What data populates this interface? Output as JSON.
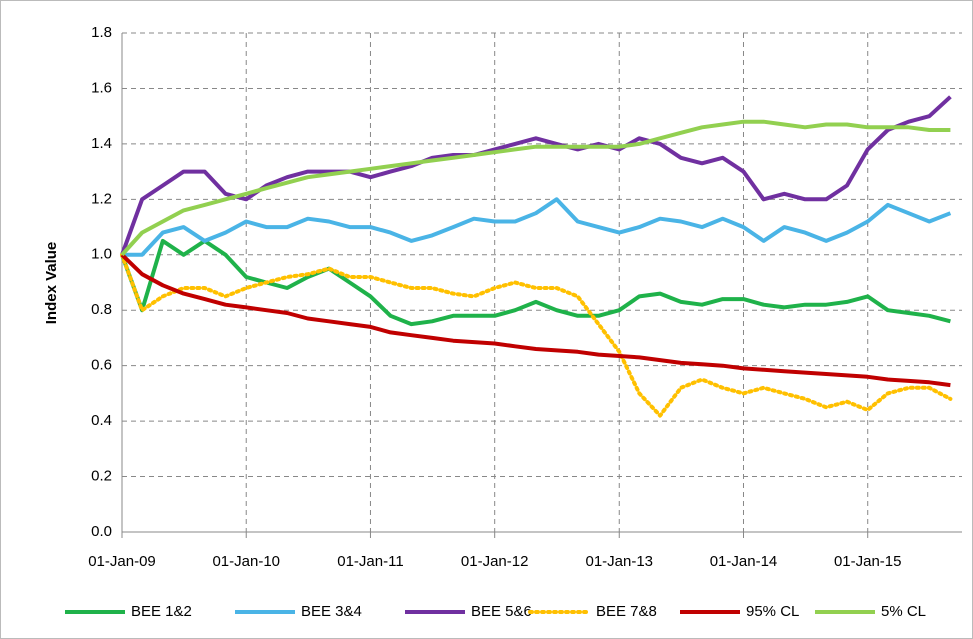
{
  "chart_data": {
    "type": "line",
    "y_label": "Index Value",
    "x": [
      "2009-01-01",
      "2009-03-01",
      "2009-05-01",
      "2009-07-01",
      "2009-09-01",
      "2009-11-01",
      "2010-01-01",
      "2010-03-01",
      "2010-05-01",
      "2010-07-01",
      "2010-09-01",
      "2010-11-01",
      "2011-01-01",
      "2011-03-01",
      "2011-05-01",
      "2011-07-01",
      "2011-09-01",
      "2011-11-01",
      "2012-01-01",
      "2012-03-01",
      "2012-05-01",
      "2012-07-01",
      "2012-09-01",
      "2012-11-01",
      "2013-01-01",
      "2013-03-01",
      "2013-05-01",
      "2013-07-01",
      "2013-09-01",
      "2013-11-01",
      "2014-01-01",
      "2014-03-01",
      "2014-05-01",
      "2014-07-01",
      "2014-09-01",
      "2014-11-01",
      "2015-01-01",
      "2015-03-01",
      "2015-05-01",
      "2015-07-01",
      "2015-09-01"
    ],
    "series": [
      {
        "name": "BEE 1&2",
        "color": "#1fb24a",
        "style": "solid",
        "values": [
          1.0,
          0.8,
          1.05,
          1.0,
          1.05,
          1.0,
          0.92,
          0.9,
          0.88,
          0.92,
          0.95,
          0.9,
          0.85,
          0.78,
          0.75,
          0.76,
          0.78,
          0.78,
          0.78,
          0.8,
          0.83,
          0.8,
          0.78,
          0.78,
          0.8,
          0.85,
          0.86,
          0.83,
          0.82,
          0.84,
          0.84,
          0.82,
          0.81,
          0.82,
          0.82,
          0.83,
          0.85,
          0.8,
          0.79,
          0.78,
          0.76
        ]
      },
      {
        "name": "BEE 3&4",
        "color": "#4ab4e6",
        "style": "solid",
        "values": [
          1.0,
          1.0,
          1.08,
          1.1,
          1.05,
          1.08,
          1.12,
          1.1,
          1.1,
          1.13,
          1.12,
          1.1,
          1.1,
          1.08,
          1.05,
          1.07,
          1.1,
          1.13,
          1.12,
          1.12,
          1.15,
          1.2,
          1.12,
          1.1,
          1.08,
          1.1,
          1.13,
          1.12,
          1.1,
          1.13,
          1.1,
          1.05,
          1.1,
          1.08,
          1.05,
          1.08,
          1.12,
          1.18,
          1.15,
          1.12,
          1.15
        ]
      },
      {
        "name": "BEE 5&6",
        "color": "#7030a0",
        "style": "solid",
        "values": [
          1.0,
          1.2,
          1.25,
          1.3,
          1.3,
          1.22,
          1.2,
          1.25,
          1.28,
          1.3,
          1.3,
          1.3,
          1.28,
          1.3,
          1.32,
          1.35,
          1.36,
          1.36,
          1.38,
          1.4,
          1.42,
          1.4,
          1.38,
          1.4,
          1.38,
          1.42,
          1.4,
          1.35,
          1.33,
          1.35,
          1.3,
          1.2,
          1.22,
          1.2,
          1.2,
          1.25,
          1.38,
          1.45,
          1.48,
          1.5,
          1.57
        ]
      },
      {
        "name": "BEE 7&8",
        "color": "#ffc000",
        "style": "dotted",
        "values": [
          1.0,
          0.8,
          0.85,
          0.88,
          0.88,
          0.85,
          0.88,
          0.9,
          0.92,
          0.93,
          0.95,
          0.92,
          0.92,
          0.9,
          0.88,
          0.88,
          0.86,
          0.85,
          0.88,
          0.9,
          0.88,
          0.88,
          0.85,
          0.75,
          0.65,
          0.5,
          0.42,
          0.52,
          0.55,
          0.52,
          0.5,
          0.52,
          0.5,
          0.48,
          0.45,
          0.47,
          0.44,
          0.5,
          0.52,
          0.52,
          0.48
        ]
      },
      {
        "name": "95% CL",
        "color": "#c00000",
        "style": "solid",
        "values": [
          1.0,
          0.93,
          0.89,
          0.86,
          0.84,
          0.82,
          0.81,
          0.8,
          0.79,
          0.77,
          0.76,
          0.75,
          0.74,
          0.72,
          0.71,
          0.7,
          0.69,
          0.685,
          0.68,
          0.67,
          0.66,
          0.655,
          0.65,
          0.64,
          0.635,
          0.63,
          0.62,
          0.61,
          0.605,
          0.6,
          0.59,
          0.585,
          0.58,
          0.575,
          0.57,
          0.565,
          0.56,
          0.55,
          0.545,
          0.54,
          0.53
        ]
      },
      {
        "name": "5% CL",
        "color": "#92d050",
        "style": "solid",
        "values": [
          1.0,
          1.08,
          1.12,
          1.16,
          1.18,
          1.2,
          1.22,
          1.24,
          1.26,
          1.28,
          1.29,
          1.3,
          1.31,
          1.32,
          1.33,
          1.34,
          1.35,
          1.36,
          1.37,
          1.38,
          1.39,
          1.39,
          1.39,
          1.39,
          1.39,
          1.4,
          1.42,
          1.44,
          1.46,
          1.47,
          1.48,
          1.48,
          1.47,
          1.46,
          1.47,
          1.47,
          1.46,
          1.46,
          1.46,
          1.45,
          1.45
        ]
      }
    ],
    "xlim": [
      "2009-01-01",
      "2015-10-05"
    ],
    "xticks": [
      {
        "value": "2009-01-01",
        "label": "01-Jan-09"
      },
      {
        "value": "2010-01-01",
        "label": "01-Jan-10"
      },
      {
        "value": "2011-01-01",
        "label": "01-Jan-11"
      },
      {
        "value": "2012-01-01",
        "label": "01-Jan-12"
      },
      {
        "value": "2013-01-01",
        "label": "01-Jan-13"
      },
      {
        "value": "2014-01-01",
        "label": "01-Jan-14"
      },
      {
        "value": "2015-01-01",
        "label": "01-Jan-15"
      }
    ],
    "ylim": [
      0,
      1.8
    ],
    "yticks": [
      {
        "value": 0,
        "label": "0.0"
      },
      {
        "value": 0.2,
        "label": "0.2"
      },
      {
        "value": 0.4,
        "label": "0.4"
      },
      {
        "value": 0.6,
        "label": "0.6"
      },
      {
        "value": 0.8,
        "label": "0.8"
      },
      {
        "value": 1,
        "label": "1.0"
      },
      {
        "value": 1.2,
        "label": "1.2"
      },
      {
        "value": 1.4,
        "label": "1.4"
      },
      {
        "value": 1.6,
        "label": "1.6"
      },
      {
        "value": 1.8,
        "label": "1.8"
      }
    ],
    "grid": true,
    "legend": "bottom"
  }
}
